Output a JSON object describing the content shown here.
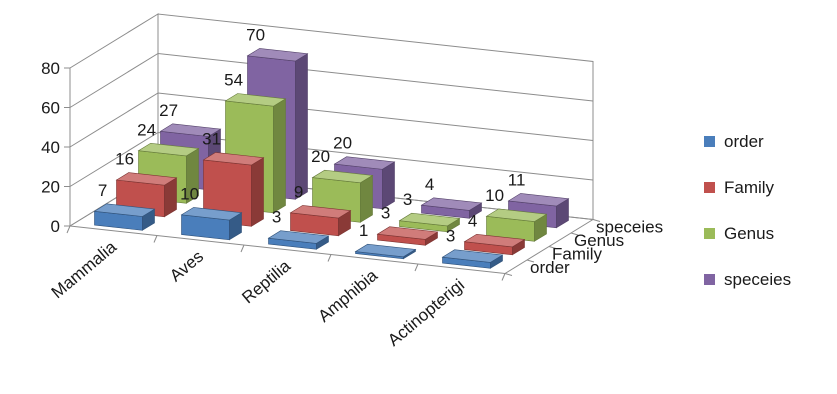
{
  "chart_data": {
    "type": "bar",
    "subtype": "3d-column",
    "title": "",
    "xlabel": "",
    "ylabel": "",
    "ylim": [
      0,
      80
    ],
    "yticks": [
      0,
      20,
      40,
      60,
      80
    ],
    "grid": true,
    "legend_position": "right",
    "categories": [
      "Mammalia",
      "Aves",
      "Reptilia",
      "Amphibia",
      "Actinopterigi"
    ],
    "series": [
      {
        "name": "order",
        "color": "#4a7ebb",
        "values": [
          7,
          10,
          3,
          1,
          3
        ]
      },
      {
        "name": "Family",
        "color": "#c0504d",
        "values": [
          16,
          31,
          9,
          3,
          4
        ]
      },
      {
        "name": "Genus",
        "color": "#9bbb59",
        "values": [
          24,
          54,
          20,
          3,
          10
        ]
      },
      {
        "name": "speceies",
        "color": "#8064a2",
        "values": [
          27,
          70,
          20,
          4,
          11
        ]
      }
    ],
    "depth_labels": [
      "order",
      "Family",
      "Genus",
      "speceies"
    ]
  }
}
